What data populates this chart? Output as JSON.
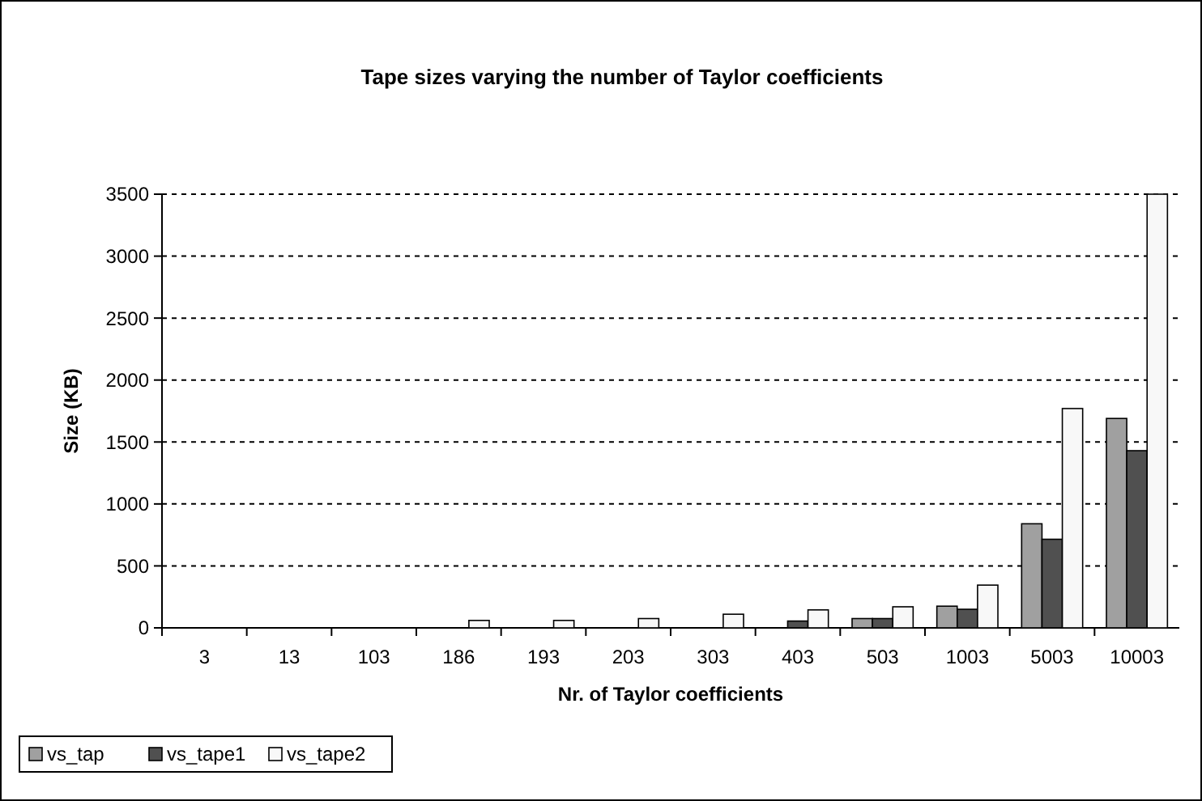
{
  "chart_data": {
    "type": "bar",
    "title": "Tape sizes varying the number of Taylor coefficients",
    "xlabel": "Nr. of Taylor coefficients",
    "ylabel": "Size (KB)",
    "categories": [
      "3",
      "13",
      "103",
      "186",
      "193",
      "203",
      "303",
      "403",
      "503",
      "1003",
      "5003",
      "10003"
    ],
    "series": [
      {
        "name": "vs_tap",
        "color": "#a0a0a0",
        "values": [
          0,
          0,
          0,
          0,
          0,
          0,
          0,
          0,
          75,
          175,
          840,
          1690
        ]
      },
      {
        "name": "vs_tape1",
        "color": "#505050",
        "values": [
          0,
          0,
          0,
          0,
          0,
          0,
          0,
          55,
          75,
          150,
          715,
          1430
        ]
      },
      {
        "name": "vs_tape2",
        "color": "#f8f8f8",
        "values": [
          0,
          0,
          0,
          60,
          60,
          75,
          110,
          145,
          170,
          345,
          1770,
          3500
        ]
      }
    ],
    "ylim": [
      0,
      3500
    ],
    "yticks": [
      0,
      500,
      1000,
      1500,
      2000,
      2500,
      3000,
      3500
    ],
    "grid": "y",
    "legend": "bottom left"
  }
}
